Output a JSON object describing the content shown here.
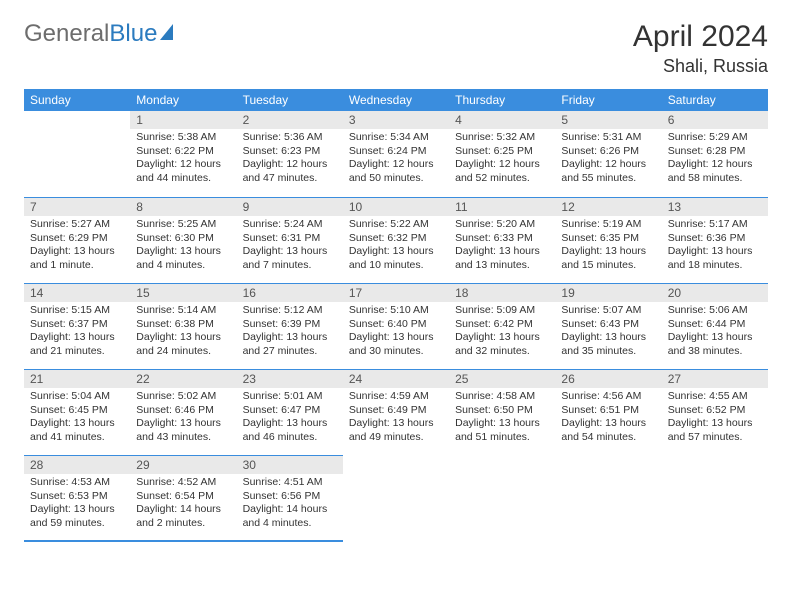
{
  "brand": {
    "part1": "General",
    "part2": "Blue"
  },
  "title": "April 2024",
  "location": "Shali, Russia",
  "colors": {
    "header_bg": "#3a8dde",
    "header_text": "#ffffff",
    "daynum_bg": "#e9e9e9",
    "divider": "#3a8dde",
    "body_text": "#333333",
    "brand_gray": "#6d6d6d",
    "brand_blue": "#2b7bbf"
  },
  "weekdays": [
    "Sunday",
    "Monday",
    "Tuesday",
    "Wednesday",
    "Thursday",
    "Friday",
    "Saturday"
  ],
  "weeks": [
    [
      null,
      {
        "d": "1",
        "sr": "Sunrise: 5:38 AM",
        "ss": "Sunset: 6:22 PM",
        "dl": "Daylight: 12 hours and 44 minutes."
      },
      {
        "d": "2",
        "sr": "Sunrise: 5:36 AM",
        "ss": "Sunset: 6:23 PM",
        "dl": "Daylight: 12 hours and 47 minutes."
      },
      {
        "d": "3",
        "sr": "Sunrise: 5:34 AM",
        "ss": "Sunset: 6:24 PM",
        "dl": "Daylight: 12 hours and 50 minutes."
      },
      {
        "d": "4",
        "sr": "Sunrise: 5:32 AM",
        "ss": "Sunset: 6:25 PM",
        "dl": "Daylight: 12 hours and 52 minutes."
      },
      {
        "d": "5",
        "sr": "Sunrise: 5:31 AM",
        "ss": "Sunset: 6:26 PM",
        "dl": "Daylight: 12 hours and 55 minutes."
      },
      {
        "d": "6",
        "sr": "Sunrise: 5:29 AM",
        "ss": "Sunset: 6:28 PM",
        "dl": "Daylight: 12 hours and 58 minutes."
      }
    ],
    [
      {
        "d": "7",
        "sr": "Sunrise: 5:27 AM",
        "ss": "Sunset: 6:29 PM",
        "dl": "Daylight: 13 hours and 1 minute."
      },
      {
        "d": "8",
        "sr": "Sunrise: 5:25 AM",
        "ss": "Sunset: 6:30 PM",
        "dl": "Daylight: 13 hours and 4 minutes."
      },
      {
        "d": "9",
        "sr": "Sunrise: 5:24 AM",
        "ss": "Sunset: 6:31 PM",
        "dl": "Daylight: 13 hours and 7 minutes."
      },
      {
        "d": "10",
        "sr": "Sunrise: 5:22 AM",
        "ss": "Sunset: 6:32 PM",
        "dl": "Daylight: 13 hours and 10 minutes."
      },
      {
        "d": "11",
        "sr": "Sunrise: 5:20 AM",
        "ss": "Sunset: 6:33 PM",
        "dl": "Daylight: 13 hours and 13 minutes."
      },
      {
        "d": "12",
        "sr": "Sunrise: 5:19 AM",
        "ss": "Sunset: 6:35 PM",
        "dl": "Daylight: 13 hours and 15 minutes."
      },
      {
        "d": "13",
        "sr": "Sunrise: 5:17 AM",
        "ss": "Sunset: 6:36 PM",
        "dl": "Daylight: 13 hours and 18 minutes."
      }
    ],
    [
      {
        "d": "14",
        "sr": "Sunrise: 5:15 AM",
        "ss": "Sunset: 6:37 PM",
        "dl": "Daylight: 13 hours and 21 minutes."
      },
      {
        "d": "15",
        "sr": "Sunrise: 5:14 AM",
        "ss": "Sunset: 6:38 PM",
        "dl": "Daylight: 13 hours and 24 minutes."
      },
      {
        "d": "16",
        "sr": "Sunrise: 5:12 AM",
        "ss": "Sunset: 6:39 PM",
        "dl": "Daylight: 13 hours and 27 minutes."
      },
      {
        "d": "17",
        "sr": "Sunrise: 5:10 AM",
        "ss": "Sunset: 6:40 PM",
        "dl": "Daylight: 13 hours and 30 minutes."
      },
      {
        "d": "18",
        "sr": "Sunrise: 5:09 AM",
        "ss": "Sunset: 6:42 PM",
        "dl": "Daylight: 13 hours and 32 minutes."
      },
      {
        "d": "19",
        "sr": "Sunrise: 5:07 AM",
        "ss": "Sunset: 6:43 PM",
        "dl": "Daylight: 13 hours and 35 minutes."
      },
      {
        "d": "20",
        "sr": "Sunrise: 5:06 AM",
        "ss": "Sunset: 6:44 PM",
        "dl": "Daylight: 13 hours and 38 minutes."
      }
    ],
    [
      {
        "d": "21",
        "sr": "Sunrise: 5:04 AM",
        "ss": "Sunset: 6:45 PM",
        "dl": "Daylight: 13 hours and 41 minutes."
      },
      {
        "d": "22",
        "sr": "Sunrise: 5:02 AM",
        "ss": "Sunset: 6:46 PM",
        "dl": "Daylight: 13 hours and 43 minutes."
      },
      {
        "d": "23",
        "sr": "Sunrise: 5:01 AM",
        "ss": "Sunset: 6:47 PM",
        "dl": "Daylight: 13 hours and 46 minutes."
      },
      {
        "d": "24",
        "sr": "Sunrise: 4:59 AM",
        "ss": "Sunset: 6:49 PM",
        "dl": "Daylight: 13 hours and 49 minutes."
      },
      {
        "d": "25",
        "sr": "Sunrise: 4:58 AM",
        "ss": "Sunset: 6:50 PM",
        "dl": "Daylight: 13 hours and 51 minutes."
      },
      {
        "d": "26",
        "sr": "Sunrise: 4:56 AM",
        "ss": "Sunset: 6:51 PM",
        "dl": "Daylight: 13 hours and 54 minutes."
      },
      {
        "d": "27",
        "sr": "Sunrise: 4:55 AM",
        "ss": "Sunset: 6:52 PM",
        "dl": "Daylight: 13 hours and 57 minutes."
      }
    ],
    [
      {
        "d": "28",
        "sr": "Sunrise: 4:53 AM",
        "ss": "Sunset: 6:53 PM",
        "dl": "Daylight: 13 hours and 59 minutes."
      },
      {
        "d": "29",
        "sr": "Sunrise: 4:52 AM",
        "ss": "Sunset: 6:54 PM",
        "dl": "Daylight: 14 hours and 2 minutes."
      },
      {
        "d": "30",
        "sr": "Sunrise: 4:51 AM",
        "ss": "Sunset: 6:56 PM",
        "dl": "Daylight: 14 hours and 4 minutes."
      },
      null,
      null,
      null,
      null
    ]
  ]
}
